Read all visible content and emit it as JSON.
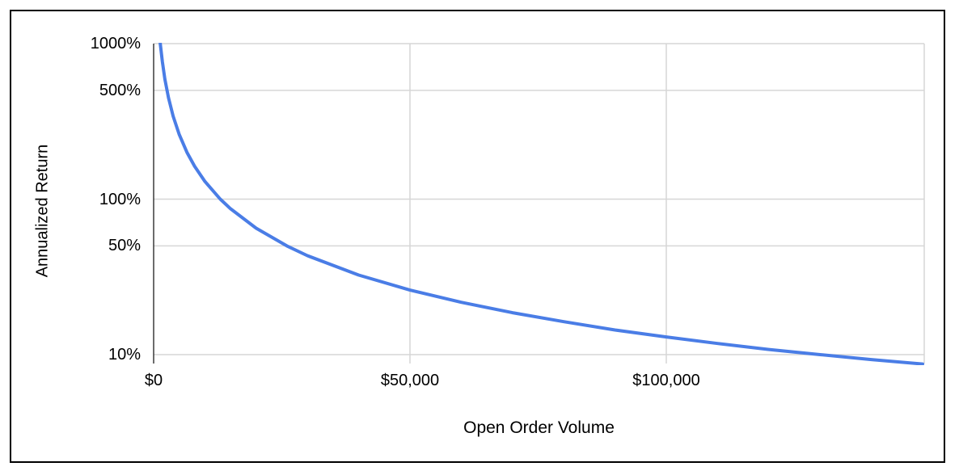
{
  "chart_data": {
    "type": "line",
    "title": "",
    "xlabel": "Open Order Volume",
    "ylabel": "Annualized Return",
    "legend_position": "none",
    "grid": true,
    "x_axis": {
      "scale": "linear",
      "min": 0,
      "max": 150000,
      "ticks": [
        {
          "label": "$0",
          "value": 0
        },
        {
          "label": "$50,000",
          "value": 50000
        },
        {
          "label": "$100,000",
          "value": 100000
        }
      ]
    },
    "y_axis": {
      "scale": "log",
      "unit": "percent",
      "top_value_pct": 1000,
      "bottom_value_pct": 8.7,
      "ticks": [
        {
          "label": "1000%",
          "value": 1000
        },
        {
          "label": "500%",
          "value": 500
        },
        {
          "label": "100%",
          "value": 100
        },
        {
          "label": "50%",
          "value": 50
        },
        {
          "label": "10%",
          "value": 10
        }
      ]
    },
    "series": [
      {
        "name": "Annualized Return",
        "color": "#4a7de6",
        "points_volume_usd_vs_return_pct": [
          [
            650,
            2000
          ],
          [
            1300,
            1000
          ],
          [
            1700,
            765
          ],
          [
            2200,
            591
          ],
          [
            2900,
            448
          ],
          [
            3800,
            342
          ],
          [
            5000,
            260
          ],
          [
            6500,
            200
          ],
          [
            8000,
            162.5
          ],
          [
            10000,
            130
          ],
          [
            13000,
            100
          ],
          [
            15000,
            86.7
          ],
          [
            20000,
            65
          ],
          [
            26000,
            50
          ],
          [
            30000,
            43.3
          ],
          [
            40000,
            32.5
          ],
          [
            50000,
            26
          ],
          [
            60000,
            21.7
          ],
          [
            70000,
            18.6
          ],
          [
            80000,
            16.3
          ],
          [
            90000,
            14.4
          ],
          [
            100000,
            13
          ],
          [
            110000,
            11.8
          ],
          [
            120000,
            10.8
          ],
          [
            130000,
            10
          ],
          [
            140000,
            9.3
          ],
          [
            150000,
            8.7
          ]
        ]
      }
    ],
    "colors": {
      "line": "#4a7de6",
      "gridline": "#d6d6d6",
      "axis_line": "#3a3a3a",
      "text": "#000000",
      "frame_border": "#000000",
      "background": "#ffffff"
    }
  }
}
